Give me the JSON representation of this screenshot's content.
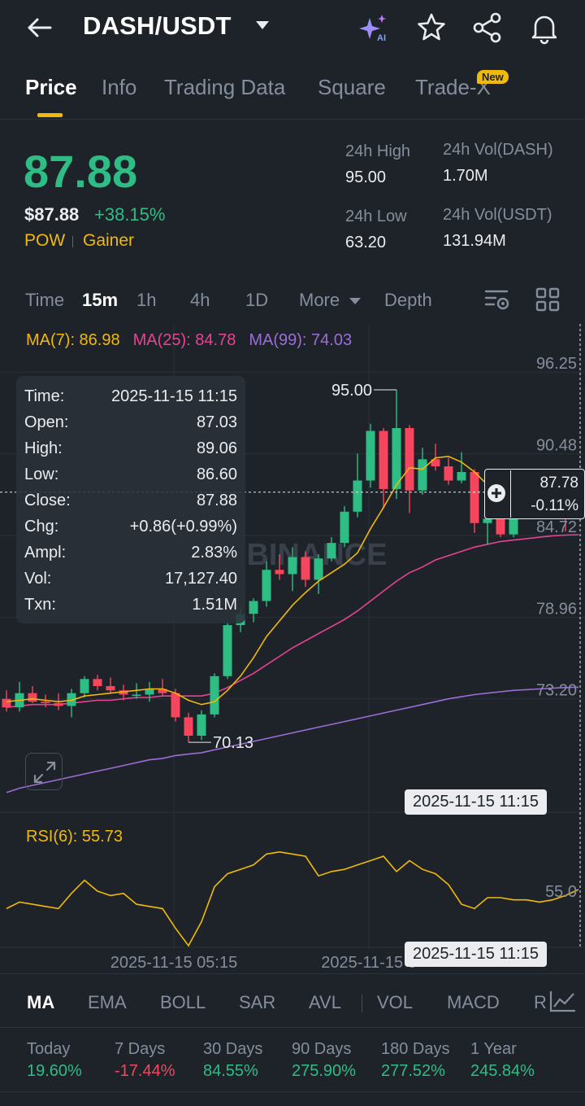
{
  "header": {
    "pair": "DASH/USDT",
    "icons": [
      "back-arrow-icon",
      "ai-sparkle-icon",
      "star-icon",
      "share-icon",
      "bell-icon"
    ]
  },
  "tabs": [
    {
      "label": "Price",
      "active": true
    },
    {
      "label": "Info"
    },
    {
      "label": "Trading Data"
    },
    {
      "label": "Square"
    },
    {
      "label": "Trade-X",
      "badge": "New"
    }
  ],
  "ticker": {
    "last_price": "87.88",
    "usd_price": "$87.88",
    "change_pct": "+38.15%",
    "tags": [
      "POW",
      "Gainer"
    ],
    "high_label": "24h High",
    "high_value": "95.00",
    "low_label": "24h Low",
    "low_value": "63.20",
    "vol_base_label": "24h Vol(DASH)",
    "vol_base_value": "1.70M",
    "vol_quote_label": "24h Vol(USDT)",
    "vol_quote_value": "131.94M"
  },
  "intervals": {
    "items": [
      "Time",
      "15m",
      "1h",
      "4h",
      "1D",
      "More",
      "Depth"
    ],
    "active": "15m"
  },
  "ma_legend": {
    "ma7": "MA(7): 86.98",
    "ma25": "MA(25): 84.78",
    "ma99": "MA(99): 74.03"
  },
  "tooltip": {
    "rows": [
      {
        "label": "Time:",
        "value": "2025-11-15 11:15"
      },
      {
        "label": "Open:",
        "value": "87.03"
      },
      {
        "label": "High:",
        "value": "89.06"
      },
      {
        "label": "Low:",
        "value": "86.60"
      },
      {
        "label": "Close:",
        "value": "87.88"
      },
      {
        "label": "Chg:",
        "value": "+0.86(+0.99%)"
      },
      {
        "label": "Ampl:",
        "value": "2.83%"
      },
      {
        "label": "Vol:",
        "value": "17,127.40"
      },
      {
        "label": "Txn:",
        "value": "1.51M"
      }
    ]
  },
  "crosshair": {
    "price": "87.78",
    "change": "-0.11%",
    "time_label": "2025-11-15 11:15"
  },
  "colors": {
    "up": "#2ebd85",
    "down": "#f6465d",
    "ma7": "#f0b90b",
    "ma25": "#e84393",
    "ma99": "#9b6dd6",
    "accent": "#f0b90b",
    "bg": "#1e2329"
  },
  "chart_data": {
    "type": "candlestick",
    "y_axis_ticks": [
      "96.25",
      "90.48",
      "84.72",
      "78.96",
      "73.20"
    ],
    "ylim": [
      67.5,
      98.5
    ],
    "x_axis_ticks": [
      "2025-11-15 05:15",
      "2025-11-15 0"
    ],
    "annotations": {
      "max_label": "95.00",
      "min_label": "70.13"
    },
    "watermark": "BINANCE",
    "candles": [
      {
        "o": 73.2,
        "h": 73.8,
        "l": 72.3,
        "c": 72.6
      },
      {
        "o": 72.6,
        "h": 74.4,
        "l": 72.3,
        "c": 73.6
      },
      {
        "o": 73.6,
        "h": 74.1,
        "l": 72.9,
        "c": 73.0
      },
      {
        "o": 73.0,
        "h": 73.5,
        "l": 72.6,
        "c": 72.9
      },
      {
        "o": 72.9,
        "h": 73.6,
        "l": 72.4,
        "c": 72.7
      },
      {
        "o": 72.7,
        "h": 73.9,
        "l": 71.9,
        "c": 73.6
      },
      {
        "o": 73.6,
        "h": 74.8,
        "l": 73.3,
        "c": 74.6
      },
      {
        "o": 74.6,
        "h": 74.9,
        "l": 73.8,
        "c": 74.1
      },
      {
        "o": 74.1,
        "h": 74.7,
        "l": 73.6,
        "c": 73.8
      },
      {
        "o": 73.8,
        "h": 74.2,
        "l": 73.1,
        "c": 73.5
      },
      {
        "o": 73.5,
        "h": 74.3,
        "l": 73.2,
        "c": 73.5
      },
      {
        "o": 73.5,
        "h": 74.4,
        "l": 73.0,
        "c": 73.9
      },
      {
        "o": 73.9,
        "h": 74.6,
        "l": 73.4,
        "c": 73.6
      },
      {
        "o": 73.6,
        "h": 73.9,
        "l": 71.6,
        "c": 71.9
      },
      {
        "o": 71.9,
        "h": 72.2,
        "l": 70.13,
        "c": 70.6
      },
      {
        "o": 70.6,
        "h": 72.4,
        "l": 70.3,
        "c": 72.1
      },
      {
        "o": 72.1,
        "h": 75.0,
        "l": 71.9,
        "c": 74.8
      },
      {
        "o": 74.8,
        "h": 78.6,
        "l": 74.6,
        "c": 78.4
      },
      {
        "o": 78.4,
        "h": 79.6,
        "l": 77.9,
        "c": 79.2
      },
      {
        "o": 79.2,
        "h": 80.3,
        "l": 78.6,
        "c": 80.1
      },
      {
        "o": 80.1,
        "h": 82.9,
        "l": 79.7,
        "c": 82.3
      },
      {
        "o": 82.3,
        "h": 83.4,
        "l": 81.6,
        "c": 82.0
      },
      {
        "o": 82.0,
        "h": 83.9,
        "l": 80.8,
        "c": 83.2
      },
      {
        "o": 83.2,
        "h": 83.6,
        "l": 81.1,
        "c": 81.6
      },
      {
        "o": 81.6,
        "h": 83.4,
        "l": 80.6,
        "c": 83.1
      },
      {
        "o": 83.1,
        "h": 84.6,
        "l": 82.9,
        "c": 84.2
      },
      {
        "o": 84.2,
        "h": 86.8,
        "l": 83.9,
        "c": 86.4
      },
      {
        "o": 86.4,
        "h": 90.5,
        "l": 86.0,
        "c": 88.6
      },
      {
        "o": 88.6,
        "h": 92.6,
        "l": 88.1,
        "c": 92.1
      },
      {
        "o": 92.1,
        "h": 92.3,
        "l": 86.6,
        "c": 88.0
      },
      {
        "o": 88.0,
        "h": 95.0,
        "l": 87.3,
        "c": 92.3
      },
      {
        "o": 92.3,
        "h": 92.5,
        "l": 86.3,
        "c": 87.9
      },
      {
        "o": 87.9,
        "h": 90.9,
        "l": 87.6,
        "c": 90.1
      },
      {
        "o": 90.1,
        "h": 91.2,
        "l": 89.3,
        "c": 89.6
      },
      {
        "o": 89.6,
        "h": 90.2,
        "l": 88.3,
        "c": 88.6
      },
      {
        "o": 88.6,
        "h": 90.6,
        "l": 88.4,
        "c": 89.2
      },
      {
        "o": 89.2,
        "h": 89.4,
        "l": 84.9,
        "c": 85.6
      },
      {
        "o": 85.6,
        "h": 86.3,
        "l": 84.1,
        "c": 85.9
      },
      {
        "o": 85.9,
        "h": 87.2,
        "l": 84.6,
        "c": 84.8
      },
      {
        "o": 84.8,
        "h": 87.4,
        "l": 84.6,
        "c": 87.3
      },
      {
        "o": 87.3,
        "h": 87.8,
        "l": 85.9,
        "c": 86.6
      },
      {
        "o": 86.6,
        "h": 87.1,
        "l": 86.1,
        "c": 86.8
      },
      {
        "o": 86.8,
        "h": 87.6,
        "l": 86.4,
        "c": 86.7
      },
      {
        "o": 86.7,
        "h": 87.0,
        "l": 85.0,
        "c": 86.5
      },
      {
        "o": 87.03,
        "h": 89.06,
        "l": 86.6,
        "c": 87.88
      }
    ],
    "ma7": [
      73.0,
      73.1,
      73.2,
      73.1,
      73.0,
      73.1,
      73.4,
      73.5,
      73.6,
      73.7,
      73.8,
      73.9,
      73.9,
      73.6,
      73.1,
      72.8,
      73.0,
      73.8,
      74.8,
      76.1,
      77.6,
      78.7,
      79.8,
      80.7,
      81.5,
      82.1,
      82.7,
      83.5,
      85.2,
      86.7,
      88.3,
      89.5,
      89.4,
      90.2,
      90.3,
      89.9,
      89.2,
      88.3,
      87.6,
      87.3,
      87.1,
      86.9,
      86.7,
      86.8,
      86.98
    ],
    "ma25": [
      72.6,
      72.7,
      72.8,
      72.8,
      72.8,
      72.9,
      73.0,
      73.1,
      73.1,
      73.2,
      73.3,
      73.3,
      73.4,
      73.4,
      73.4,
      73.4,
      73.6,
      74.0,
      74.5,
      75.0,
      75.6,
      76.2,
      76.8,
      77.3,
      77.8,
      78.3,
      78.8,
      79.4,
      80.1,
      80.8,
      81.5,
      82.1,
      82.5,
      83.0,
      83.3,
      83.6,
      83.9,
      84.1,
      84.3,
      84.4,
      84.5,
      84.6,
      84.7,
      84.75,
      84.78
    ],
    "ma99": [
      66.6,
      66.9,
      67.1,
      67.3,
      67.5,
      67.7,
      67.9,
      68.1,
      68.3,
      68.5,
      68.7,
      68.9,
      69.0,
      69.2,
      69.3,
      69.4,
      69.6,
      69.8,
      70.0,
      70.2,
      70.4,
      70.6,
      70.8,
      71.0,
      71.2,
      71.4,
      71.6,
      71.8,
      72.0,
      72.2,
      72.4,
      72.6,
      72.8,
      73.0,
      73.2,
      73.35,
      73.5,
      73.6,
      73.7,
      73.8,
      73.85,
      73.9,
      73.95,
      74.0,
      74.03
    ],
    "rsi": {
      "label": "RSI(6): 55.73",
      "tick": "55.0",
      "ylim": [
        30,
        80
      ],
      "values": [
        47,
        50,
        49,
        48,
        47,
        54,
        60,
        55,
        53,
        54,
        49,
        48,
        47,
        38,
        30,
        41,
        57,
        63,
        65,
        67,
        72,
        73,
        72,
        71,
        62,
        64,
        65,
        67,
        69,
        71,
        64,
        69,
        65,
        63,
        58,
        49,
        47,
        52,
        52,
        51,
        51,
        50,
        51,
        53,
        55.73
      ]
    }
  },
  "indicator_tabs": {
    "items": [
      "MA",
      "EMA",
      "BOLL",
      "SAR",
      "AVL",
      "VOL",
      "MACD",
      "R"
    ],
    "active": "MA"
  },
  "performance": [
    {
      "label": "Today",
      "value": "19.60%",
      "dir": "up"
    },
    {
      "label": "7 Days",
      "value": "-17.44%",
      "dir": "down"
    },
    {
      "label": "30 Days",
      "value": "84.55%",
      "dir": "up"
    },
    {
      "label": "90 Days",
      "value": "275.90%",
      "dir": "up"
    },
    {
      "label": "180 Days",
      "value": "277.52%",
      "dir": "up"
    },
    {
      "label": "1 Year",
      "value": "245.84%",
      "dir": "up"
    }
  ]
}
